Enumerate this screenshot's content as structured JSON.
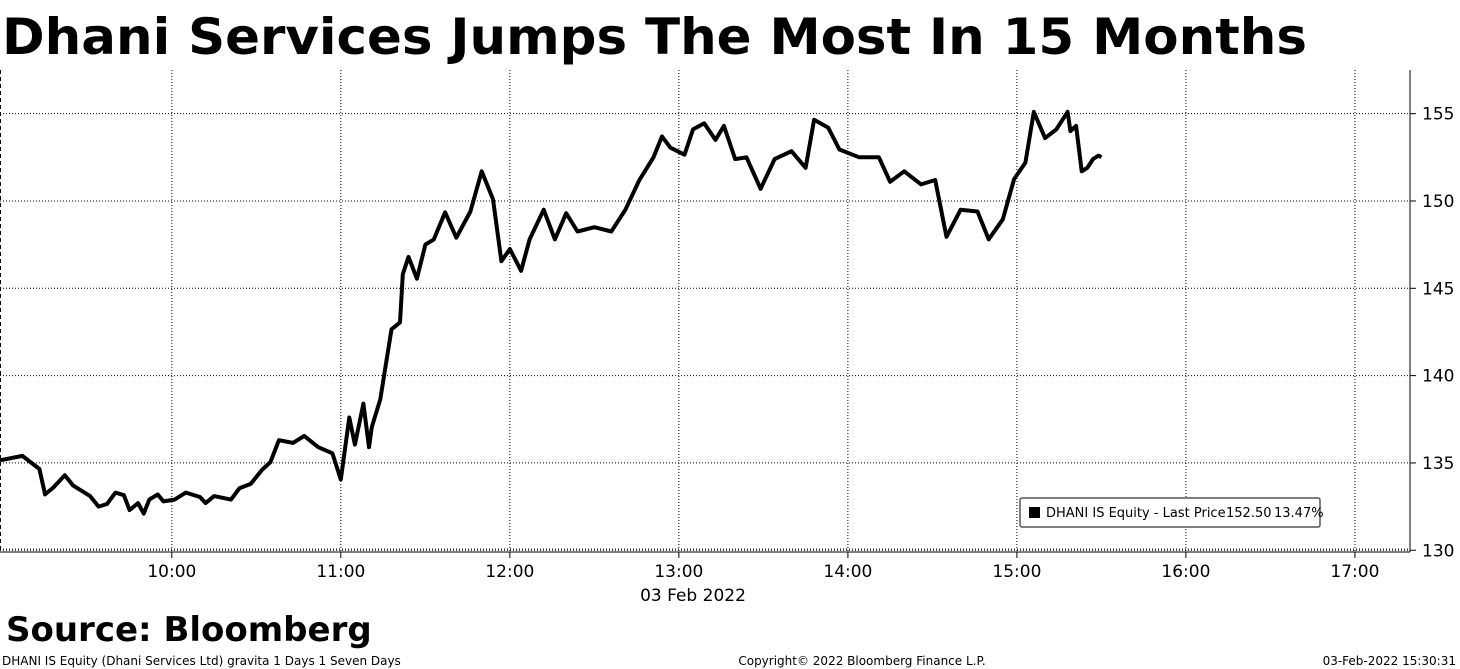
{
  "chart_data": {
    "type": "line",
    "title": "Dhani Services Jumps The Most In 15 Months",
    "xlabel": "03 Feb 2022",
    "x": [
      "08:59",
      "09:07",
      "09:13",
      "09:15",
      "09:18",
      "09:22",
      "09:25",
      "09:31",
      "09:34",
      "09:37",
      "09:40",
      "09:43",
      "09:45",
      "09:48",
      "09:50",
      "09:52",
      "09:55",
      "09:57",
      "10:01",
      "10:05",
      "10:10",
      "10:12",
      "10:15",
      "10:21",
      "10:24",
      "10:28",
      "10:32",
      "10:35",
      "10:38",
      "10:43",
      "10:47",
      "10:52",
      "10:57",
      "11:00",
      "11:03",
      "11:05",
      "11:08",
      "11:10",
      "11:11",
      "11:14",
      "11:18",
      "11:21",
      "11:22",
      "11:24",
      "11:27",
      "11:30",
      "11:33",
      "11:37",
      "11:41",
      "11:46",
      "11:50",
      "11:54",
      "11:57",
      "12:00",
      "12:04",
      "12:07",
      "12:12",
      "12:16",
      "12:20",
      "12:24",
      "12:30",
      "12:36",
      "12:41",
      "12:46",
      "12:51",
      "12:54",
      "12:57",
      "13:02",
      "13:05",
      "13:09",
      "13:13",
      "13:16",
      "13:20",
      "13:24",
      "13:29",
      "13:34",
      "13:40",
      "13:45",
      "13:48",
      "13:53",
      "13:57",
      "14:04",
      "14:11",
      "14:15",
      "14:20",
      "14:26",
      "14:31",
      "14:35",
      "14:40",
      "14:46",
      "14:50",
      "14:55",
      "14:59",
      "15:03",
      "15:06",
      "15:10",
      "15:14",
      "15:18",
      "15:19",
      "15:21",
      "15:23",
      "15:25",
      "15:27",
      "15:29",
      "15:30"
    ],
    "series": [
      {
        "name": "DHANI IS Equity - Last Price",
        "color": "#000000",
        "values": [
          135.15,
          135.4,
          134.65,
          133.2,
          133.6,
          134.3,
          133.7,
          133.1,
          132.5,
          132.65,
          133.3,
          133.15,
          132.3,
          132.7,
          132.1,
          132.9,
          133.2,
          132.8,
          132.9,
          133.3,
          133.05,
          132.7,
          133.1,
          132.9,
          133.55,
          133.8,
          134.6,
          135.05,
          136.3,
          136.15,
          136.55,
          135.9,
          135.55,
          134.05,
          137.6,
          136.05,
          138.4,
          135.9,
          137.05,
          138.65,
          142.65,
          143.05,
          145.8,
          146.8,
          145.55,
          147.5,
          147.8,
          149.35,
          147.9,
          149.4,
          151.7,
          150.1,
          146.55,
          147.25,
          146.0,
          147.8,
          149.5,
          147.8,
          149.3,
          148.25,
          148.5,
          148.25,
          149.5,
          151.2,
          152.5,
          153.7,
          153.05,
          152.65,
          154.1,
          154.45,
          153.5,
          154.3,
          152.4,
          152.5,
          150.7,
          152.4,
          152.85,
          151.9,
          154.65,
          154.2,
          152.95,
          152.5,
          152.5,
          151.1,
          151.7,
          150.95,
          151.2,
          147.95,
          149.5,
          149.4,
          147.8,
          148.95,
          151.25,
          152.2,
          155.1,
          153.6,
          154.1,
          155.1,
          154.0,
          154.3,
          151.7,
          151.9,
          152.4,
          152.6,
          152.5
        ]
      }
    ],
    "legend": {
      "last_price": "152.50",
      "change": "13.47%"
    },
    "xlim": [
      "08:59",
      "17:16"
    ],
    "xticks": [
      "10:00",
      "11:00",
      "12:00",
      "13:00",
      "14:00",
      "15:00",
      "16:00",
      "17:00"
    ],
    "ylim": [
      129.9,
      157.5
    ],
    "yticks": [
      130,
      135,
      140,
      145,
      150,
      155
    ],
    "grid": true
  },
  "source": "Source: Bloomberg",
  "footer": {
    "left": "DHANI IS Equity (Dhani Services Ltd) gravita 1 Days 1 Seven Days",
    "center": "Copyright© 2022 Bloomberg Finance L.P.",
    "right": "03-Feb-2022 15:30:31"
  }
}
